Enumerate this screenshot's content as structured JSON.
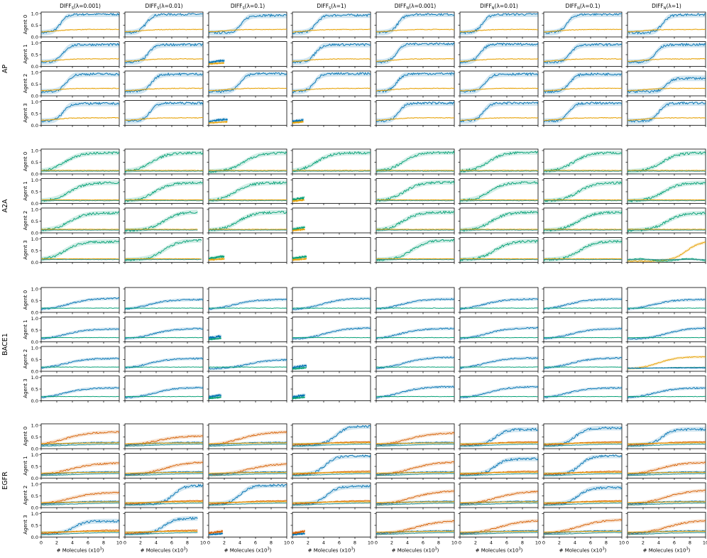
{
  "figure": {
    "colors": {
      "blue": "#0072b2",
      "orange": "#e69f00",
      "green": "#009e73",
      "vermillion": "#d55e00",
      "teal": "#2a8f8a"
    },
    "columns": [
      {
        "base": "DIFF",
        "sub": "S",
        "lambda": "(λ=0.001)"
      },
      {
        "base": "DIFF",
        "sub": "S",
        "lambda": "(λ=0.01)"
      },
      {
        "base": "DIFF",
        "sub": "S",
        "lambda": "(λ=0.1)"
      },
      {
        "base": "DIFF",
        "sub": "S",
        "lambda": "(λ=1)"
      },
      {
        "base": "DIFF",
        "sub": "N",
        "lambda": "(λ=0.001)"
      },
      {
        "base": "DIFF",
        "sub": "N",
        "lambda": "(λ=0.01)"
      },
      {
        "base": "DIFF",
        "sub": "N",
        "lambda": "(λ=0.1)"
      },
      {
        "base": "DIFF",
        "sub": "N",
        "lambda": "(λ=1)"
      }
    ],
    "agent_labels": [
      "Agent 0",
      "Agent 1",
      "Agent 2",
      "Agent 3"
    ],
    "groups": [
      "AP",
      "A2A",
      "BACE1",
      "EGFR"
    ],
    "y_ticks": [
      "0.0",
      "0.5",
      "1.0"
    ],
    "x_ticks": [
      "0",
      "2",
      "4",
      "6",
      "8",
      "10"
    ],
    "xlabel": "# Molecules (x10",
    "xlabel_exp": "3",
    "xlabel_close": ")"
  },
  "chart_data": {
    "type": "line",
    "description_of_grid": "4 targets x 4 agents rows, 8 method columns; each panel plots reward (y, 0-1) against number of molecules (x, 0-10 thousand)",
    "x_range": [
      0,
      10
    ],
    "ylim": [
      0,
      1
    ],
    "groups": {
      "AP": {
        "cells": [
          [
            {
              "k": "s",
              "a": 1.0,
              "b": 0.97,
              "m": 2.5
            },
            {
              "k": "s",
              "a": 1.0,
              "b": 0.97,
              "m": 2.7
            },
            {
              "k": "s",
              "a": 1.0,
              "b": 0.92,
              "m": 4.2
            },
            {
              "k": "s",
              "a": 1.0,
              "b": 0.93,
              "m": 3.0
            },
            {
              "k": "s",
              "a": 1.0,
              "b": 0.97,
              "m": 2.8
            },
            {
              "k": "s",
              "a": 1.0,
              "b": 0.97,
              "m": 2.9
            },
            {
              "k": "s",
              "a": 1.0,
              "b": 0.97,
              "m": 3.0
            },
            {
              "k": "s",
              "a": 1.0,
              "b": 0.95,
              "m": 4.5
            }
          ],
          [
            {
              "k": "s",
              "a": 1.0,
              "b": 0.93,
              "m": 2.8
            },
            {
              "k": "s",
              "a": 1.0,
              "b": 0.93,
              "m": 3.0
            },
            {
              "k": "d",
              "a": 1.0,
              "b": 0.2,
              "m": 2.0
            },
            {
              "k": "s",
              "a": 1.0,
              "b": 0.93,
              "m": 2.9
            },
            {
              "k": "s",
              "a": 1.0,
              "b": 0.97,
              "m": 2.6
            },
            {
              "k": "s",
              "a": 1.0,
              "b": 0.95,
              "m": 2.6
            },
            {
              "k": "s",
              "a": 1.0,
              "b": 0.93,
              "m": 3.4
            },
            {
              "k": "s",
              "a": 1.0,
              "b": 0.93,
              "m": 3.6
            }
          ],
          [
            {
              "k": "s",
              "a": 1.0,
              "b": 0.93,
              "m": 3.2
            },
            {
              "k": "s",
              "a": 1.0,
              "b": 0.93,
              "m": 3.4
            },
            {
              "k": "s",
              "a": 1.0,
              "b": 0.95,
              "m": 4.0
            },
            {
              "k": "s",
              "a": 1.0,
              "b": 0.95,
              "m": 2.8
            },
            {
              "k": "s",
              "a": 1.0,
              "b": 0.95,
              "m": 2.6
            },
            {
              "k": "s",
              "a": 1.0,
              "b": 0.93,
              "m": 3.2
            },
            {
              "k": "s",
              "a": 1.0,
              "b": 0.93,
              "m": 3.3
            },
            {
              "k": "g",
              "a": 1.0,
              "b": 0.75,
              "m": 5.0
            }
          ],
          [
            {
              "k": "s",
              "a": 1.0,
              "b": 0.93,
              "m": 2.8
            },
            {
              "k": "s",
              "a": 1.0,
              "b": 0.95,
              "m": 3.2
            },
            {
              "k": "d",
              "a": 1.0,
              "b": 0.2,
              "m": 2.4
            },
            {
              "k": "d",
              "a": 1.0,
              "b": 0.15,
              "m": 1.2
            },
            {
              "k": "s",
              "a": 1.0,
              "b": 0.95,
              "m": 2.9
            },
            {
              "k": "s",
              "a": 1.0,
              "b": 0.95,
              "m": 3.0
            },
            {
              "k": "s",
              "a": 1.0,
              "b": 0.95,
              "m": 3.2
            },
            {
              "k": "s",
              "a": 1.0,
              "b": 0.95,
              "m": 4.0
            }
          ]
        ]
      },
      "A2A": {
        "cells": [
          [
            {
              "k": "g",
              "a": 2.0,
              "b": 0.9,
              "m": 3.0
            },
            {
              "k": "g",
              "a": 2.0,
              "b": 0.9,
              "m": 3.4
            },
            {
              "k": "g",
              "a": 2.0,
              "b": 0.9,
              "m": 4.5
            },
            {
              "k": "g",
              "a": 2.0,
              "b": 0.9,
              "m": 3.0
            },
            {
              "k": "g",
              "a": 2.0,
              "b": 0.92,
              "m": 3.4
            },
            {
              "k": "g",
              "a": 2.0,
              "b": 0.92,
              "m": 3.6
            },
            {
              "k": "g",
              "a": 2.0,
              "b": 0.9,
              "m": 3.8
            },
            {
              "k": "g",
              "a": 2.0,
              "b": 0.9,
              "m": 4.4
            }
          ],
          [
            {
              "k": "g",
              "a": 2.0,
              "b": 0.88,
              "m": 3.6
            },
            {
              "k": "g",
              "a": 2.0,
              "b": 0.88,
              "m": 3.8
            },
            {
              "k": "g",
              "a": 2.0,
              "b": 0.88,
              "m": 3.4
            },
            {
              "k": "d",
              "a": 2.0,
              "b": 0.15,
              "m": 1.5
            },
            {
              "k": "g",
              "a": 2.0,
              "b": 0.9,
              "m": 3.6
            },
            {
              "k": "g",
              "a": 2.0,
              "b": 0.9,
              "m": 3.8
            },
            {
              "k": "g",
              "a": 2.0,
              "b": 0.88,
              "m": 4.4
            },
            {
              "k": "g",
              "a": 2.0,
              "b": 0.88,
              "m": 4.6
            }
          ],
          [
            {
              "k": "g",
              "a": 2.0,
              "b": 0.85,
              "m": 3.6
            },
            {
              "k": "c",
              "a": 2.0,
              "b": 0.9,
              "m": 5.0,
              "c": 9.3
            },
            {
              "k": "g",
              "a": 2.0,
              "b": 0.88,
              "m": 3.8
            },
            {
              "k": "d",
              "a": 2.0,
              "b": 0.12,
              "m": 1.6
            },
            {
              "k": "g",
              "a": 2.0,
              "b": 0.88,
              "m": 3.4
            },
            {
              "k": "g",
              "a": 2.0,
              "b": 0.88,
              "m": 4.0
            },
            {
              "k": "g",
              "a": 2.0,
              "b": 0.88,
              "m": 4.4
            },
            {
              "k": "g",
              "a": 2.0,
              "b": 0.85,
              "m": 5.0
            }
          ],
          [
            {
              "k": "g",
              "a": 2.0,
              "b": 0.88,
              "m": 3.0
            },
            {
              "k": "c",
              "a": 2.0,
              "b": 0.95,
              "m": 5.0,
              "c": 9.8
            },
            {
              "k": "d",
              "a": 2.0,
              "b": 0.2,
              "m": 2.0
            },
            {
              "k": "d",
              "a": 2.0,
              "b": 0.1,
              "m": 1.8
            },
            {
              "k": "g",
              "a": 2.0,
              "b": 0.95,
              "m": 4.6
            },
            {
              "k": "g",
              "a": 2.0,
              "b": 0.9,
              "m": 4.4
            },
            {
              "k": "g",
              "a": 2.0,
              "b": 0.9,
              "m": 4.6
            },
            {
              "k": "o",
              "a": 2.0,
              "b": 0.92,
              "m": 5.0
            }
          ]
        ]
      },
      "BACE1": {
        "cells": [
          [
            {
              "k": "g",
              "a": 0.0,
              "b": 0.6,
              "m": 3.5
            },
            {
              "k": "g",
              "a": 0.0,
              "b": 0.55,
              "m": 3.0
            },
            {
              "k": "g",
              "a": 0.0,
              "b": 0.55,
              "m": 3.2
            },
            {
              "k": "g",
              "a": 0.0,
              "b": 0.6,
              "m": 3.8
            },
            {
              "k": "g",
              "a": 0.0,
              "b": 0.57,
              "m": 3.2
            },
            {
              "k": "g",
              "a": 0.0,
              "b": 0.57,
              "m": 3.0
            },
            {
              "k": "g",
              "a": 0.0,
              "b": 0.57,
              "m": 3.0
            },
            {
              "k": "g",
              "a": 0.0,
              "b": 0.55,
              "m": 3.2
            }
          ],
          [
            {
              "k": "g",
              "a": 0.0,
              "b": 0.55,
              "m": 3.2
            },
            {
              "k": "g",
              "a": 0.0,
              "b": 0.57,
              "m": 3.6
            },
            {
              "k": "d",
              "a": 0.0,
              "b": 0.15,
              "m": 1.6
            },
            {
              "k": "g",
              "a": 0.0,
              "b": 0.6,
              "m": 4.2
            },
            {
              "k": "g",
              "a": 0.0,
              "b": 0.57,
              "m": 3.0
            },
            {
              "k": "g",
              "a": 0.0,
              "b": 0.6,
              "m": 3.4
            },
            {
              "k": "g",
              "a": 0.0,
              "b": 0.57,
              "m": 3.5
            },
            {
              "k": "g",
              "a": 0.0,
              "b": 0.6,
              "m": 5.0
            }
          ],
          [
            {
              "k": "g",
              "a": 0.0,
              "b": 0.55,
              "m": 3.0
            },
            {
              "k": "g",
              "a": 0.0,
              "b": 0.55,
              "m": 3.0
            },
            {
              "k": "g",
              "a": 0.0,
              "b": 0.5,
              "m": 5.0
            },
            {
              "k": "d",
              "a": 0.0,
              "b": 0.2,
              "m": 1.8
            },
            {
              "k": "g",
              "a": 0.0,
              "b": 0.6,
              "m": 3.6
            },
            {
              "k": "g",
              "a": 0.0,
              "b": 0.57,
              "m": 3.2
            },
            {
              "k": "g",
              "a": 0.0,
              "b": 0.57,
              "m": 3.4
            },
            {
              "k": "o",
              "a": 0.0,
              "b": 0.62,
              "m": 4.0
            }
          ],
          [
            {
              "k": "g",
              "a": 0.0,
              "b": 0.55,
              "m": 3.0
            },
            {
              "k": "g",
              "a": 0.0,
              "b": 0.57,
              "m": 3.8
            },
            {
              "k": "d",
              "a": 0.0,
              "b": 0.15,
              "m": 1.6
            },
            {
              "k": "d",
              "a": 0.0,
              "b": 0.2,
              "m": 1.6
            },
            {
              "k": "g",
              "a": 0.0,
              "b": 0.6,
              "m": 3.2
            },
            {
              "k": "g",
              "a": 0.0,
              "b": 0.6,
              "m": 3.6
            },
            {
              "k": "g",
              "a": 0.0,
              "b": 0.55,
              "m": 3.0
            },
            {
              "k": "g",
              "a": 0.0,
              "b": 0.55,
              "m": 3.4
            }
          ]
        ]
      },
      "EGFR": {
        "cells": [
          [
            {
              "k": "e",
              "a": 3.0,
              "b": 0.72,
              "m": 3.0
            },
            {
              "k": "e",
              "a": 3.0,
              "b": 0.55,
              "m": 4.0
            },
            {
              "k": "e",
              "a": 3.0,
              "b": 0.72,
              "m": 4.0
            },
            {
              "k": "b",
              "a": 3.0,
              "b": 0.95,
              "m": 5.5
            },
            {
              "k": "e",
              "a": 3.0,
              "b": 0.68,
              "m": 4.0
            },
            {
              "k": "b",
              "a": 3.0,
              "b": 0.82,
              "m": 4.5
            },
            {
              "k": "b",
              "a": 3.0,
              "b": 0.88,
              "m": 4.0
            },
            {
              "k": "b",
              "a": 3.0,
              "b": 0.83,
              "m": 4.4
            }
          ],
          [
            {
              "k": "e",
              "a": 3.0,
              "b": 0.65,
              "m": 3.8
            },
            {
              "k": "e",
              "a": 3.0,
              "b": 0.7,
              "m": 5.0
            },
            {
              "k": "e",
              "a": 3.0,
              "b": 0.62,
              "m": 5.0
            },
            {
              "k": "b",
              "a": 3.0,
              "b": 0.95,
              "m": 4.2
            },
            {
              "k": "e",
              "a": 3.0,
              "b": 0.7,
              "m": 4.6
            },
            {
              "k": "b",
              "a": 3.0,
              "b": 0.82,
              "m": 4.4
            },
            {
              "k": "b",
              "a": 3.0,
              "b": 0.95,
              "m": 4.6
            },
            {
              "k": "e",
              "a": 3.0,
              "b": 0.68,
              "m": 4.0
            }
          ],
          [
            {
              "k": "e",
              "a": 3.0,
              "b": 0.65,
              "m": 3.6
            },
            {
              "k": "b",
              "a": 3.0,
              "b": 0.95,
              "m": 6.2
            },
            {
              "k": "b",
              "a": 3.0,
              "b": 0.95,
              "m": 4.0
            },
            {
              "k": "b",
              "a": 3.0,
              "b": 0.9,
              "m": 4.4
            },
            {
              "k": "e",
              "a": 3.0,
              "b": 0.72,
              "m": 4.6
            },
            {
              "k": "e",
              "a": 3.0,
              "b": 0.7,
              "m": 4.6
            },
            {
              "k": "b",
              "a": 3.0,
              "b": 0.85,
              "m": 4.4
            },
            {
              "k": "e",
              "a": 3.0,
              "b": 0.75,
              "m": 4.8
            }
          ],
          [
            {
              "k": "b",
              "a": 3.0,
              "b": 0.68,
              "m": 4.2,
              "c": 10
            },
            {
              "k": "c",
              "a": 3.0,
              "b": 0.8,
              "m": 5.0,
              "c": 9.3
            },
            {
              "k": "d",
              "a": 3.0,
              "b": 0.15,
              "m": 1.8
            },
            {
              "k": "d",
              "a": 3.0,
              "b": 0.12,
              "m": 1.6
            },
            {
              "k": "e",
              "a": 3.0,
              "b": 0.7,
              "m": 5.0
            },
            {
              "k": "e",
              "a": 3.0,
              "b": 0.72,
              "m": 5.0
            },
            {
              "k": "e",
              "a": 3.0,
              "b": 0.75,
              "m": 4.4
            },
            {
              "k": "e",
              "a": 3.0,
              "b": 0.72,
              "m": 5.0
            }
          ]
        ]
      }
    }
  }
}
